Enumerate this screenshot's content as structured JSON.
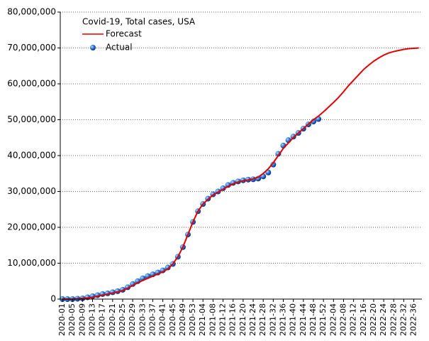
{
  "chart_data": {
    "type": "line",
    "title": "Covid-19, Total cases, USA",
    "categories": [
      "2020-01",
      null,
      "2020-05",
      null,
      "2020-09",
      null,
      "2020-13",
      null,
      "2020-17",
      null,
      "2020-21",
      null,
      "2020-25",
      null,
      "2020-29",
      null,
      "2020-33",
      null,
      "2020-37",
      null,
      "2020-41",
      null,
      "2020-45",
      null,
      "2020-49",
      null,
      "2020-53",
      null,
      "2021-04",
      null,
      "2021-08",
      null,
      "2021-12",
      null,
      "2021-16",
      null,
      "2021-20",
      null,
      "2021-24",
      null,
      "2021-28",
      null,
      "2021-32",
      null,
      "2021-36",
      null,
      "2021-40",
      null,
      "2021-44",
      null,
      "2021-48",
      null,
      "2021-52",
      null,
      "2022-04",
      null,
      "2022-08",
      null,
      "2022-12",
      null,
      "2022-16",
      null,
      "2022-20",
      null,
      "2022-24",
      null,
      "2022-28",
      null,
      "2022-32",
      null,
      "2022-36",
      null
    ],
    "series": [
      {
        "name": "Forecast",
        "color": "#e00000",
        "values": [
          0,
          0,
          0,
          100000,
          200000,
          300000,
          500000,
          800000,
          1100000,
          1400000,
          1700000,
          2000000,
          2400000,
          3000000,
          3800000,
          4500000,
          5200000,
          5800000,
          6400000,
          7000000,
          7600000,
          8400000,
          9800000,
          11800000,
          14500000,
          18000000,
          21500000,
          24500000,
          26500000,
          27800000,
          29000000,
          29800000,
          30600000,
          31400000,
          32100000,
          32600000,
          33000000,
          33200000,
          33500000,
          34000000,
          35000000,
          36300000,
          38000000,
          40000000,
          42000000,
          43500000,
          45000000,
          46300000,
          47500000,
          48800000,
          50000000,
          51000000,
          52200000,
          53500000,
          54800000,
          56200000,
          57800000,
          59500000,
          61000000,
          62500000,
          64000000,
          65200000,
          66300000,
          67200000,
          68000000,
          68600000,
          69000000,
          69300000,
          69600000,
          69800000,
          69900000,
          70000000
        ]
      },
      {
        "name": "Actual",
        "color": "#1f5fd0",
        "values": [
          0,
          0,
          0,
          100000,
          200000,
          500000,
          800000,
          1100000,
          1400000,
          1600000,
          1900000,
          2200000,
          2600000,
          3300000,
          4200000,
          5000000,
          5800000,
          6400000,
          6900000,
          7400000,
          8000000,
          8800000,
          9800000,
          11800000,
          14500000,
          18000000,
          21500000,
          24500000,
          26500000,
          28000000,
          29200000,
          30000000,
          30900000,
          31800000,
          32400000,
          32800000,
          33100000,
          33300000,
          33400000,
          33600000,
          34200000,
          35300000,
          37500000,
          40500000,
          42800000,
          44300000,
          45300000,
          46300000,
          47500000,
          48700000,
          49500000,
          50200000,
          null,
          null,
          null,
          null,
          null,
          null,
          null,
          null,
          null,
          null,
          null,
          null,
          null,
          null,
          null,
          null,
          null,
          null,
          null,
          null
        ]
      }
    ],
    "ylim": [
      0,
      80000000
    ],
    "yticks": [
      0,
      {
        "value": 10000000,
        "label": "10,000,000"
      },
      {
        "value": 20000000,
        "label": "20,000,000"
      },
      {
        "value": 30000000,
        "label": "30,000,000"
      },
      {
        "value": 40000000,
        "label": "40,000,000"
      },
      {
        "value": 50000000,
        "label": "50,000,000"
      },
      {
        "value": 60000000,
        "label": "60,000,000"
      },
      {
        "value": 70000000,
        "label": "70,000,000"
      },
      {
        "value": 80000000,
        "label": "80,000,000"
      }
    ],
    "grid": true,
    "legend": "upper left"
  }
}
